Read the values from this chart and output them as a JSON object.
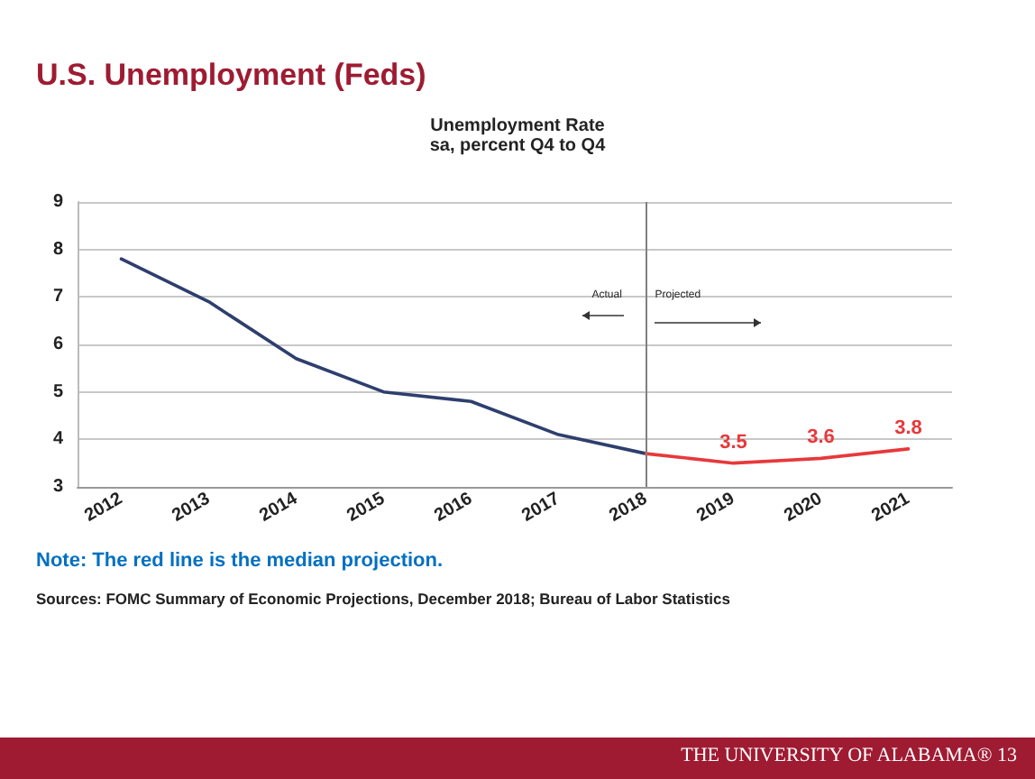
{
  "chart_data": {
    "type": "line",
    "title": "Unemployment Rate",
    "subtitle": "sa, percent Q4 to Q4",
    "categories": [
      "2012",
      "2013",
      "2014",
      "2015",
      "2016",
      "2017",
      "2018",
      "2019",
      "2020",
      "2021"
    ],
    "series": [
      {
        "color": "#2e3f6e",
        "values": [
          7.8,
          6.9,
          5.7,
          5.0,
          4.8,
          4.1,
          3.7,
          null,
          null,
          null
        ]
      },
      {
        "color": "#e8383b",
        "values": [
          null,
          null,
          null,
          null,
          null,
          null,
          3.7,
          3.5,
          3.6,
          3.8
        ],
        "value_labels": [
          null,
          null,
          null,
          null,
          null,
          null,
          null,
          "3.5",
          "3.6",
          "3.8"
        ]
      }
    ],
    "ylim": [
      3,
      9
    ],
    "yticks": [
      3,
      4,
      5,
      6,
      7,
      8,
      9
    ],
    "grid": "y",
    "line_style": "solid",
    "ref_lines": [
      {
        "axis": "x",
        "value": "2018",
        "color": "#808080"
      }
    ],
    "annotations": [
      "U.S. Unemployment (Feds)",
      "Note: The red line is the median projection.",
      "Sources: FOMC Summary of Economic Projections, December 2018; Bureau of Labor Statistics",
      "Actual",
      "Projected",
      "THE UNIVERSITY OF ALABAMA® 13"
    ]
  }
}
